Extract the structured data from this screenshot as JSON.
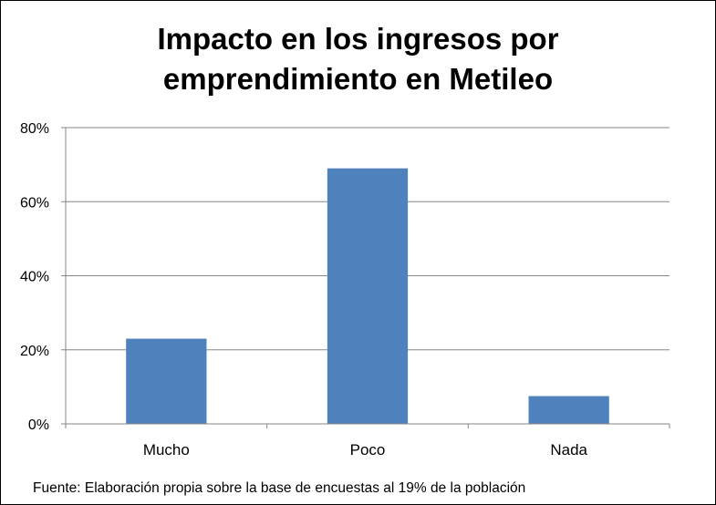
{
  "chart_data": {
    "type": "bar",
    "title_lines": [
      "Impacto en los ingresos por",
      "emprendimiento  en Metileo"
    ],
    "categories": [
      "Mucho",
      "Poco",
      "Nada"
    ],
    "values": [
      23,
      69,
      7.5
    ],
    "ylim": [
      0,
      80
    ],
    "yticks": [
      0,
      20,
      40,
      60,
      80
    ],
    "ytick_labels": [
      "0%",
      "20%",
      "40%",
      "60%",
      "80%"
    ],
    "xlabel": "",
    "ylabel": "",
    "grid": true,
    "legend": "none",
    "bar_color": "#4F81BD",
    "source_note": "Fuente: Elaboración propia sobre la base de encuestas al 19%  de la población"
  }
}
